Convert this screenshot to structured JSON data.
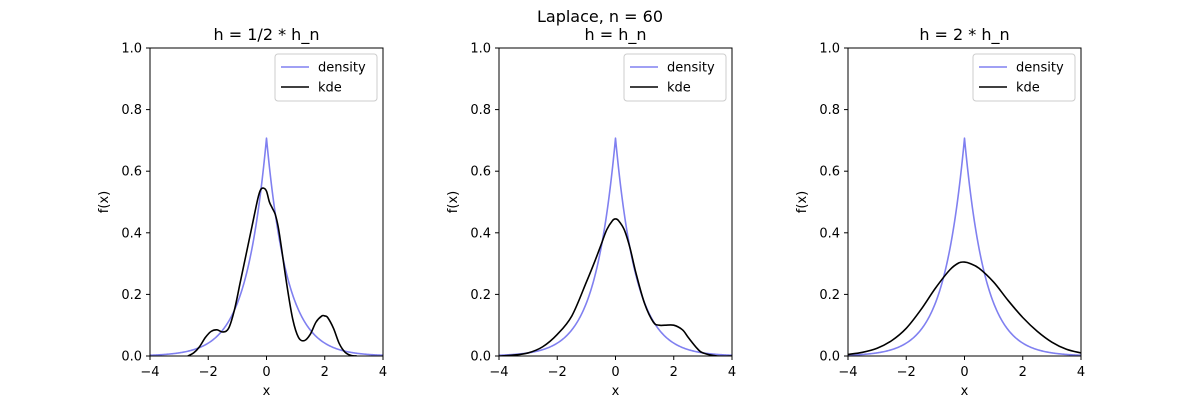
{
  "figure": {
    "suptitle": "Laplace, n = 60"
  },
  "chart_data": [
    {
      "type": "line",
      "title": "h = 1/2 * h_n",
      "xlabel": "x",
      "ylabel": "f(x)",
      "xlim": [
        -4,
        4
      ],
      "ylim": [
        0,
        1.0
      ],
      "xticks": [
        -4,
        -2,
        0,
        2,
        4
      ],
      "yticks": [
        0.0,
        0.2,
        0.4,
        0.6,
        0.8,
        1.0
      ],
      "xtick_labels": [
        "−4",
        "−2",
        "0",
        "2",
        "4"
      ],
      "ytick_labels": [
        "0.0",
        "0.2",
        "0.4",
        "0.6",
        "0.8",
        "1.0"
      ],
      "legend": "top-right",
      "series": [
        {
          "name": "density",
          "color": "#8080f0",
          "kind": "laplace",
          "scale": 0.7071
        },
        {
          "name": "kde",
          "color": "#000000",
          "kind": "points",
          "x": [
            -2.7,
            -2.5,
            -2.3,
            -2.1,
            -1.9,
            -1.7,
            -1.5,
            -1.3,
            -1.1,
            -0.9,
            -0.7,
            -0.5,
            -0.3,
            -0.2,
            -0.1,
            0.0,
            0.1,
            0.2,
            0.3,
            0.4,
            0.5,
            0.7,
            0.9,
            1.1,
            1.3,
            1.5,
            1.7,
            1.9,
            2.0,
            2.1,
            2.3,
            2.5,
            2.7,
            2.9,
            3.1
          ],
          "y": [
            0.0,
            0.01,
            0.03,
            0.06,
            0.08,
            0.085,
            0.078,
            0.09,
            0.15,
            0.24,
            0.33,
            0.42,
            0.51,
            0.54,
            0.545,
            0.535,
            0.5,
            0.48,
            0.46,
            0.42,
            0.36,
            0.23,
            0.12,
            0.06,
            0.05,
            0.07,
            0.11,
            0.13,
            0.13,
            0.125,
            0.09,
            0.04,
            0.012,
            0.002,
            0.0
          ]
        }
      ]
    },
    {
      "type": "line",
      "title": "h = h_n",
      "xlabel": "x",
      "ylabel": "f(x)",
      "xlim": [
        -4,
        4
      ],
      "ylim": [
        0,
        1.0
      ],
      "xticks": [
        -4,
        -2,
        0,
        2,
        4
      ],
      "yticks": [
        0.0,
        0.2,
        0.4,
        0.6,
        0.8,
        1.0
      ],
      "xtick_labels": [
        "−4",
        "−2",
        "0",
        "2",
        "4"
      ],
      "ytick_labels": [
        "0.0",
        "0.2",
        "0.4",
        "0.6",
        "0.8",
        "1.0"
      ],
      "legend": "top-right",
      "series": [
        {
          "name": "density",
          "color": "#8080f0",
          "kind": "laplace",
          "scale": 0.7071
        },
        {
          "name": "kde",
          "color": "#000000",
          "kind": "points",
          "x": [
            -4.0,
            -3.5,
            -3.0,
            -2.5,
            -2.0,
            -1.5,
            -1.0,
            -0.7,
            -0.5,
            -0.3,
            -0.1,
            0.0,
            0.1,
            0.3,
            0.5,
            0.7,
            1.0,
            1.3,
            1.5,
            1.7,
            2.0,
            2.3,
            2.5,
            2.8,
            3.0,
            3.5,
            4.0
          ],
          "y": [
            0.0,
            0.003,
            0.01,
            0.03,
            0.07,
            0.13,
            0.24,
            0.31,
            0.36,
            0.41,
            0.44,
            0.445,
            0.44,
            0.41,
            0.35,
            0.27,
            0.17,
            0.11,
            0.1,
            0.1,
            0.1,
            0.085,
            0.06,
            0.025,
            0.01,
            0.0,
            0.0
          ]
        }
      ]
    },
    {
      "type": "line",
      "title": "h = 2 * h_n",
      "xlabel": "x",
      "ylabel": "f(x)",
      "xlim": [
        -4,
        4
      ],
      "ylim": [
        0,
        1.0
      ],
      "xticks": [
        -4,
        -2,
        0,
        2,
        4
      ],
      "yticks": [
        0.0,
        0.2,
        0.4,
        0.6,
        0.8,
        1.0
      ],
      "xtick_labels": [
        "−4",
        "−2",
        "0",
        "2",
        "4"
      ],
      "ytick_labels": [
        "0.0",
        "0.2",
        "0.4",
        "0.6",
        "0.8",
        "1.0"
      ],
      "legend": "top-right",
      "series": [
        {
          "name": "density",
          "color": "#8080f0",
          "kind": "laplace",
          "scale": 0.7071
        },
        {
          "name": "kde",
          "color": "#000000",
          "kind": "points",
          "x": [
            -4.0,
            -3.5,
            -3.0,
            -2.5,
            -2.0,
            -1.5,
            -1.0,
            -0.5,
            -0.2,
            0.0,
            0.2,
            0.5,
            1.0,
            1.5,
            2.0,
            2.5,
            3.0,
            3.5,
            4.0
          ],
          "y": [
            0.005,
            0.012,
            0.025,
            0.05,
            0.09,
            0.15,
            0.22,
            0.28,
            0.302,
            0.305,
            0.3,
            0.285,
            0.24,
            0.18,
            0.125,
            0.08,
            0.045,
            0.022,
            0.01
          ]
        }
      ]
    }
  ]
}
